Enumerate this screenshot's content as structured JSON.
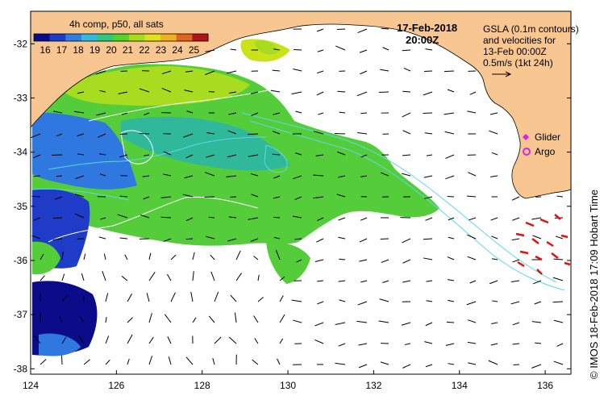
{
  "map": {
    "lon_ticks": [
      "124",
      "126",
      "128",
      "130",
      "132",
      "134",
      "136"
    ],
    "lat_ticks": [
      "-32",
      "-33",
      "-34",
      "-35",
      "-36",
      "-37",
      "-38"
    ],
    "lon_range": [
      124,
      136.6
    ],
    "lat_range": [
      -31.4,
      -38.1
    ]
  },
  "colorbar": {
    "title": "4h comp, p50, all sats",
    "labels": [
      "16",
      "17",
      "18",
      "19",
      "20",
      "21",
      "22",
      "23",
      "24",
      "25"
    ],
    "colors": [
      "#0a0a8c",
      "#1f3cc8",
      "#2f7ee0",
      "#33b9d9",
      "#2fc77a",
      "#53d22a",
      "#a6dc18",
      "#e2e317",
      "#f0b020",
      "#e0641c",
      "#b41414"
    ]
  },
  "header": {
    "date": "17-Feb-2018",
    "time": "20:00Z"
  },
  "legend": {
    "gsla_line1": "GSLA (0.1m contours)",
    "gsla_line2": "and velocities for",
    "gsla_line3": "13-Feb 00:00Z",
    "gsla_line4": "0.5m/s (1kt 24h)",
    "glider_label": "Glider",
    "argo_label": "Argo"
  },
  "credit": "© IMOS 18-Feb-2018 17:09 Hobart Time",
  "colors": {
    "land": "#f8c690",
    "ocean": "#ffffff",
    "contour": "#5cd8ec",
    "glider": "#e020e0",
    "argo": "#e020e0",
    "drifters": "#e01010"
  }
}
